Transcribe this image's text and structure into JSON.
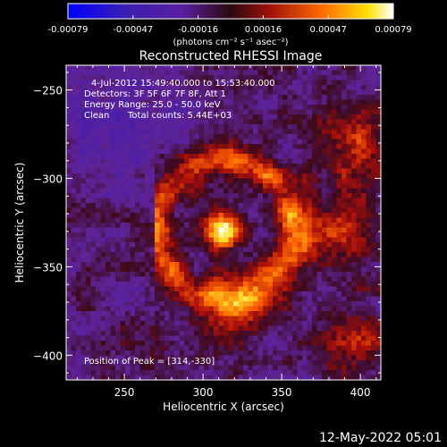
{
  "colorbar": {
    "ticks": [
      "-0.00079",
      "-0.00047",
      "-0.00016",
      "0.00016",
      "0.00047",
      "0.00079"
    ],
    "units_text": "(photons cm⁻² s⁻¹ asec⁻²)",
    "range": [
      -0.00079,
      0.00079
    ],
    "colors": [
      "#0000ff",
      "#5a1e9e",
      "#b0102a",
      "#ff8a00",
      "#ffffff"
    ]
  },
  "chart_data": {
    "type": "heatmap",
    "title": "Reconstructed RHESSI Image",
    "xlabel": "Heliocentric X (arcsec)",
    "ylabel": "Heliocentric Y (arcsec)",
    "xlim": [
      213,
      413
    ],
    "ylim": [
      -414,
      -236
    ],
    "xticks": [
      250,
      300,
      350,
      400
    ],
    "yticks": [
      -250,
      -300,
      -350,
      -400
    ],
    "peak": {
      "x": 314,
      "y": -330
    },
    "annotations": {
      "time_range": "4-Jul-2012 15:49:40.000 to 15:53:40.000",
      "detectors": "Detectors: 3F 5F 6F 7F 8F, Att 1",
      "energy": "Energy Range: 25.0 - 50.0 keV",
      "clean": "Clean",
      "total_counts": "Total counts: 5.44E+03",
      "peak_label": "Position of Peak = [314,-330]"
    }
  },
  "footer": {
    "timestamp": "12-May-2022 05:01"
  }
}
